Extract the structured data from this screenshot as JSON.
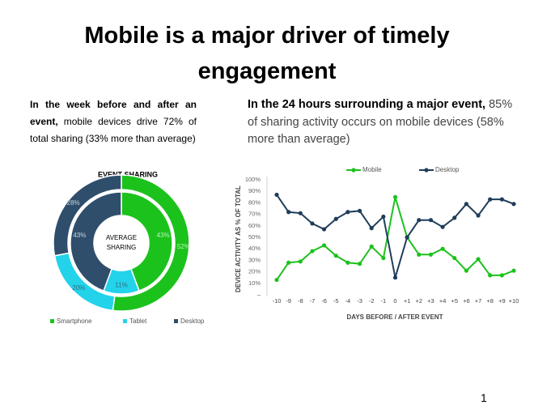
{
  "title_lines": [
    "Mobile is a major driver of timely",
    "engagement"
  ],
  "left_text": {
    "lead": "In the week before and after an event,",
    "body": "mobile devices drive 72% of total sharing (33% more than average)"
  },
  "right_text": {
    "lead": "In the 24 hours surrounding a major event,",
    "body": "85% of sharing activity occurs on mobile devices (58% more than average)"
  },
  "page_number": "1",
  "chart_data": [
    {
      "type": "donut",
      "title": "EVENT SHARING",
      "center_label": [
        "AVERAGE",
        "SHARING"
      ],
      "categories": [
        "Smartphone",
        "Tablet",
        "Desktop"
      ],
      "colors": [
        "#1cc21c",
        "#22d3ea",
        "#2f4e6c"
      ],
      "rings": [
        {
          "values": [
            52,
            20,
            28
          ],
          "value_labels": [
            "52%",
            "20%",
            "28%"
          ]
        },
        {
          "values": [
            43,
            11,
            43
          ],
          "value_labels": [
            "43%",
            "11%",
            "43%"
          ]
        }
      ],
      "legend": "bottom"
    },
    {
      "type": "line",
      "xlabel": "DAYS BEFORE / AFTER EVENT",
      "ylabel": "DEVICE ACTIVITY AS % OF TOTAL",
      "categories": [
        "-10",
        "-9",
        "-8",
        "-7",
        "-6",
        "-5",
        "-4",
        "-3",
        "-2",
        "-1",
        "0",
        "+1",
        "+2",
        "+3",
        "+4",
        "+5",
        "+6",
        "+7",
        "+8",
        "+9",
        "+10"
      ],
      "series": [
        {
          "name": "Mobile",
          "color": "#1cc21c",
          "values": [
            13,
            28,
            29,
            38,
            43,
            34,
            28,
            27,
            42,
            32,
            85,
            50,
            35,
            35,
            40,
            32,
            21,
            31,
            17,
            17,
            21
          ]
        },
        {
          "name": "Desktop",
          "color": "#1f3d5a",
          "values": [
            87,
            72,
            71,
            62,
            57,
            66,
            72,
            73,
            58,
            68,
            15,
            50,
            65,
            65,
            59,
            67,
            79,
            69,
            83,
            83,
            79
          ]
        }
      ],
      "ylim": [
        0,
        100
      ],
      "yticks": [
        {
          "value": 0,
          "label": "–"
        },
        {
          "value": 10,
          "label": "10%"
        },
        {
          "value": 20,
          "label": "20%"
        },
        {
          "value": 30,
          "label": "30%"
        },
        {
          "value": 40,
          "label": "40%"
        },
        {
          "value": 50,
          "label": "50%"
        },
        {
          "value": 60,
          "label": "60%"
        },
        {
          "value": 70,
          "label": "70%"
        },
        {
          "value": 80,
          "label": "80%"
        },
        {
          "value": 90,
          "label": "90%"
        },
        {
          "value": 100,
          "label": "100%"
        }
      ],
      "grid": false,
      "legend": "top"
    }
  ]
}
